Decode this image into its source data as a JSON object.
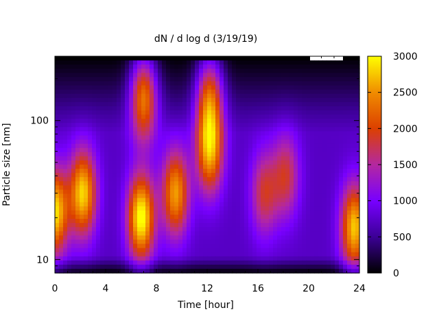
{
  "chart_data": {
    "type": "heatmap",
    "title": "dN / d log d (3/19/19)",
    "xlabel": "Time [hour]",
    "ylabel": "Particle size [nm]",
    "xlim": [
      0,
      24
    ],
    "ylim": [
      8,
      290
    ],
    "y_scale": "log",
    "x_ticks": [
      {
        "value": 0,
        "label": "0"
      },
      {
        "value": 4,
        "label": "4"
      },
      {
        "value": 8,
        "label": "8"
      },
      {
        "value": 12,
        "label": "12"
      },
      {
        "value": 16,
        "label": "16"
      },
      {
        "value": 20,
        "label": "20"
      },
      {
        "value": 24,
        "label": "24"
      }
    ],
    "y_ticks": [
      {
        "value": 10,
        "label": "10"
      },
      {
        "value": 100,
        "label": "100"
      }
    ],
    "colorbar": {
      "min": 0,
      "max": 3000,
      "ticks": [
        {
          "value": 0,
          "label": "0"
        },
        {
          "value": 500,
          "label": "500"
        },
        {
          "value": 1000,
          "label": "1000"
        },
        {
          "value": 1500,
          "label": "1500"
        },
        {
          "value": 2000,
          "label": "2000"
        },
        {
          "value": 2500,
          "label": "2500"
        },
        {
          "value": 3000,
          "label": "3000"
        }
      ],
      "palette": [
        "#000000",
        "#3c0096",
        "#7800ff",
        "#b428a0",
        "#dc4000",
        "#f08c00",
        "#ffff00"
      ]
    },
    "grid": false,
    "legend": "none",
    "missing_data_block": {
      "x_range": [
        20,
        22.7
      ],
      "y_from": 270
    },
    "background_level": 720,
    "features": [
      {
        "time": 0.0,
        "size": 22,
        "peak": 2150
      },
      {
        "time": 2.2,
        "size": 30,
        "peak": 2100
      },
      {
        "time": 6.8,
        "size": 20,
        "peak": 2350
      },
      {
        "time": 7.0,
        "size": 150,
        "peak": 1950
      },
      {
        "time": 9.5,
        "size": 30,
        "peak": 1850
      },
      {
        "time": 12.2,
        "size": 60,
        "peak": 1850
      },
      {
        "time": 12.2,
        "size": 150,
        "peak": 1700
      },
      {
        "time": 16.5,
        "size": 30,
        "peak": 1100
      },
      {
        "time": 18.2,
        "size": 40,
        "peak": 1100
      },
      {
        "time": 23.6,
        "size": 17,
        "peak": 2050
      }
    ]
  }
}
